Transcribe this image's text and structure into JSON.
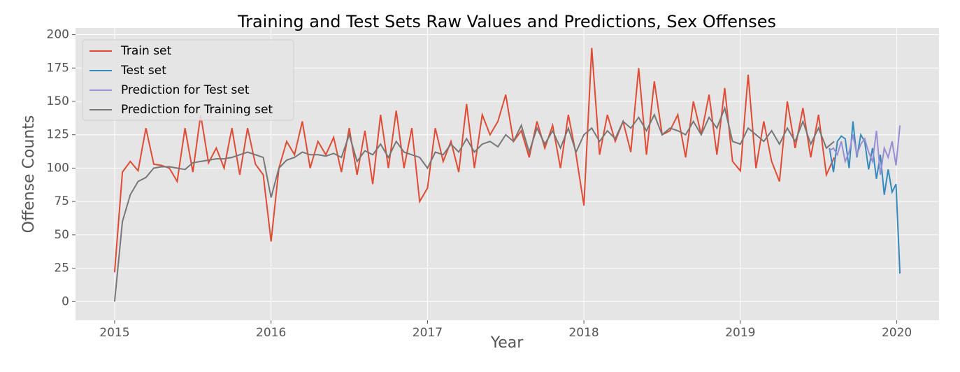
{
  "chart_data": {
    "type": "line",
    "title": "Training and Test Sets Raw Values and Predictions, Sex Offenses",
    "x_label": "Year",
    "y_label": "Offense Counts",
    "xlim": [
      2014.75,
      2020.27
    ],
    "ylim": [
      -14,
      205
    ],
    "xticks": [
      2015,
      2016,
      2017,
      2018,
      2019,
      2020
    ],
    "yticks": [
      0,
      25,
      50,
      75,
      100,
      125,
      150,
      175,
      200
    ],
    "grid": true,
    "legend": "upper left",
    "series": [
      {
        "name": "Train set",
        "color": "#E24A33",
        "x": [
          2015.0,
          2015.05,
          2015.1,
          2015.15,
          2015.2,
          2015.25,
          2015.3,
          2015.35,
          2015.4,
          2015.45,
          2015.5,
          2015.55,
          2015.6,
          2015.65,
          2015.7,
          2015.75,
          2015.8,
          2015.85,
          2015.9,
          2015.95,
          2016.0,
          2016.05,
          2016.1,
          2016.15,
          2016.2,
          2016.25,
          2016.3,
          2016.35,
          2016.4,
          2016.45,
          2016.5,
          2016.55,
          2016.6,
          2016.65,
          2016.7,
          2016.75,
          2016.8,
          2016.85,
          2016.9,
          2016.95,
          2017.0,
          2017.05,
          2017.1,
          2017.15,
          2017.2,
          2017.25,
          2017.3,
          2017.35,
          2017.4,
          2017.45,
          2017.5,
          2017.55,
          2017.6,
          2017.65,
          2017.7,
          2017.75,
          2017.8,
          2017.85,
          2017.9,
          2017.95,
          2018.0,
          2018.05,
          2018.1,
          2018.15,
          2018.2,
          2018.25,
          2018.3,
          2018.35,
          2018.4,
          2018.45,
          2018.5,
          2018.55,
          2018.6,
          2018.65,
          2018.7,
          2018.75,
          2018.8,
          2018.85,
          2018.9,
          2018.95,
          2019.0,
          2019.05,
          2019.1,
          2019.15,
          2019.2,
          2019.25,
          2019.3,
          2019.35,
          2019.4,
          2019.45,
          2019.5,
          2019.55,
          2019.6
        ],
        "values": [
          22,
          97,
          105,
          98,
          130,
          103,
          102,
          100,
          90,
          130,
          97,
          140,
          104,
          115,
          100,
          130,
          95,
          130,
          103,
          95,
          45,
          100,
          120,
          110,
          135,
          100,
          120,
          110,
          123,
          97,
          130,
          95,
          128,
          88,
          140,
          100,
          143,
          100,
          130,
          75,
          85,
          130,
          105,
          120,
          97,
          148,
          100,
          140,
          125,
          135,
          155,
          120,
          128,
          108,
          135,
          115,
          132,
          100,
          140,
          110,
          72,
          190,
          110,
          140,
          120,
          135,
          112,
          175,
          110,
          165,
          125,
          128,
          140,
          108,
          150,
          125,
          155,
          110,
          160,
          105,
          98,
          170,
          100,
          135,
          105,
          90,
          150,
          115,
          145,
          108,
          140,
          95,
          108
        ]
      },
      {
        "name": "Test set",
        "color": "#348ABD",
        "x": [
          2019.57,
          2019.595,
          2019.62,
          2019.645,
          2019.67,
          2019.695,
          2019.72,
          2019.745,
          2019.77,
          2019.795,
          2019.82,
          2019.845,
          2019.87,
          2019.895,
          2019.92,
          2019.945,
          2019.97,
          2019.995,
          2020.02
        ],
        "values": [
          115,
          97,
          120,
          124,
          122,
          100,
          135,
          108,
          125,
          120,
          99,
          115,
          92,
          110,
          80,
          99,
          82,
          88,
          21
        ]
      },
      {
        "name": "Prediction for Test set",
        "color": "#988ED5",
        "x": [
          2019.57,
          2019.595,
          2019.62,
          2019.645,
          2019.67,
          2019.695,
          2019.72,
          2019.745,
          2019.77,
          2019.795,
          2019.82,
          2019.845,
          2019.87,
          2019.895,
          2019.92,
          2019.945,
          2019.97,
          2019.995,
          2020.02
        ],
        "values": [
          113,
          115,
          110,
          120,
          105,
          112,
          125,
          110,
          118,
          122,
          112,
          105,
          128,
          95,
          115,
          108,
          120,
          102,
          132
        ]
      },
      {
        "name": "Prediction for Training set",
        "color": "#777777",
        "x": [
          2015.0,
          2015.05,
          2015.1,
          2015.15,
          2015.2,
          2015.25,
          2015.3,
          2015.35,
          2015.4,
          2015.45,
          2015.5,
          2015.55,
          2015.6,
          2015.65,
          2015.7,
          2015.75,
          2015.8,
          2015.85,
          2015.9,
          2015.95,
          2016.0,
          2016.05,
          2016.1,
          2016.15,
          2016.2,
          2016.25,
          2016.3,
          2016.35,
          2016.4,
          2016.45,
          2016.5,
          2016.55,
          2016.6,
          2016.65,
          2016.7,
          2016.75,
          2016.8,
          2016.85,
          2016.9,
          2016.95,
          2017.0,
          2017.05,
          2017.1,
          2017.15,
          2017.2,
          2017.25,
          2017.3,
          2017.35,
          2017.4,
          2017.45,
          2017.5,
          2017.55,
          2017.6,
          2017.65,
          2017.7,
          2017.75,
          2017.8,
          2017.85,
          2017.9,
          2017.95,
          2018.0,
          2018.05,
          2018.1,
          2018.15,
          2018.2,
          2018.25,
          2018.3,
          2018.35,
          2018.4,
          2018.45,
          2018.5,
          2018.55,
          2018.6,
          2018.65,
          2018.7,
          2018.75,
          2018.8,
          2018.85,
          2018.9,
          2018.95,
          2019.0,
          2019.05,
          2019.1,
          2019.15,
          2019.2,
          2019.25,
          2019.3,
          2019.35,
          2019.4,
          2019.45,
          2019.5,
          2019.55,
          2019.6
        ],
        "values": [
          0,
          60,
          80,
          90,
          93,
          100,
          101,
          101,
          100,
          99,
          104,
          105,
          106,
          107,
          107,
          108,
          110,
          112,
          110,
          108,
          78,
          100,
          106,
          108,
          112,
          110,
          110,
          109,
          111,
          108,
          125,
          105,
          113,
          110,
          118,
          108,
          120,
          112,
          110,
          108,
          100,
          112,
          110,
          118,
          112,
          122,
          112,
          118,
          120,
          116,
          125,
          120,
          132,
          112,
          130,
          118,
          128,
          115,
          130,
          112,
          125,
          130,
          120,
          128,
          122,
          135,
          130,
          138,
          128,
          140,
          125,
          130,
          128,
          125,
          135,
          125,
          138,
          130,
          145,
          120,
          118,
          130,
          125,
          120,
          128,
          118,
          130,
          120,
          135,
          118,
          130,
          115,
          120
        ]
      }
    ]
  }
}
